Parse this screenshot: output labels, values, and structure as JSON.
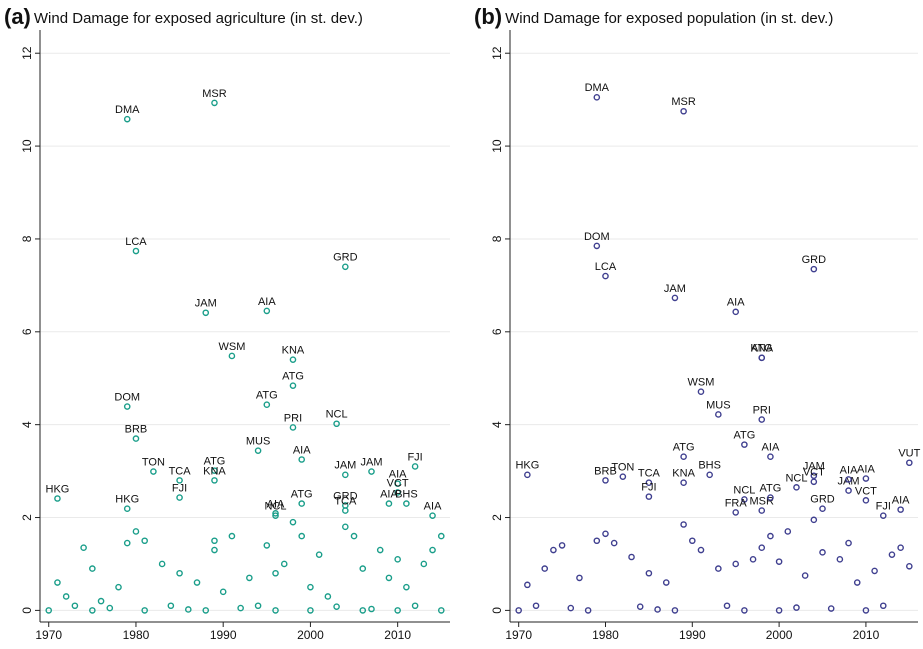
{
  "chart_data": [
    {
      "type": "scatter",
      "panel": "(a)",
      "title": "Wind Damage for exposed agriculture (in st. dev.)",
      "color": "#1a9e8a",
      "xlim": [
        1969,
        2016
      ],
      "ylim": [
        -0.25,
        12.5
      ],
      "xticks": [
        1970,
        1980,
        1990,
        2000,
        2010
      ],
      "yticks": [
        0,
        2,
        4,
        6,
        8,
        10,
        12
      ],
      "grid": true,
      "x": [
        1971,
        1979,
        1989,
        1980,
        1988,
        1995,
        2004,
        1991,
        1998,
        1998,
        1979,
        1995,
        1980,
        1998,
        2003,
        1994,
        1999,
        1982,
        1985,
        1989,
        1989,
        1985,
        2004,
        2007,
        2012,
        2010,
        2010,
        2011,
        1979,
        1996,
        1996,
        1999,
        2004,
        2004,
        2009,
        2014,
        1971,
        1972,
        1974,
        1975,
        1976,
        1978,
        1979,
        1980,
        1981,
        1983,
        1985,
        1987,
        1989,
        1989,
        1990,
        1991,
        1993,
        1995,
        1996,
        1997,
        1998,
        1999,
        2000,
        2001,
        2002,
        2004,
        2005,
        2006,
        2008,
        2009,
        2010,
        2011,
        2013,
        2014,
        2015,
        1973,
        1977,
        1984,
        1986,
        1992,
        1994,
        2003,
        2007,
        2012,
        1970,
        1975,
        1981,
        1988,
        1996,
        2000,
        2006,
        2010,
        2015
      ],
      "y": [
        2.41,
        10.58,
        10.93,
        7.74,
        6.41,
        6.45,
        7.4,
        5.48,
        5.4,
        4.84,
        4.39,
        4.43,
        3.7,
        3.94,
        4.02,
        3.44,
        3.25,
        2.99,
        2.8,
        3.01,
        2.8,
        2.43,
        2.92,
        2.99,
        3.1,
        2.73,
        2.54,
        2.3,
        2.19,
        2.04,
        2.09,
        2.3,
        2.26,
        2.15,
        2.3,
        2.04,
        0.6,
        0.3,
        1.35,
        0.9,
        0.2,
        0.5,
        1.45,
        1.7,
        1.5,
        1.0,
        0.8,
        0.6,
        1.5,
        1.3,
        0.4,
        1.6,
        0.7,
        1.4,
        0.8,
        1.0,
        1.9,
        1.6,
        0.5,
        1.2,
        0.3,
        1.8,
        1.6,
        0.9,
        1.3,
        0.7,
        1.1,
        0.5,
        1.0,
        1.3,
        1.6,
        0.1,
        0.05,
        0.1,
        0.02,
        0.05,
        0.1,
        0.08,
        0.03,
        0.1,
        0.0,
        0.0,
        0.0,
        0.0,
        0.0,
        0.0,
        0.0,
        0.0,
        0.0
      ],
      "labels": [
        "HKG",
        "DMA",
        "MSR",
        "LCA",
        "JAM",
        "AIA",
        "GRD",
        "WSM",
        "KNA",
        "ATG",
        "DOM",
        "ATG",
        "BRB",
        "PRI",
        "NCL",
        "MUS",
        "AIA",
        "TON",
        "TCA",
        "ATG",
        "KNA",
        "FJI",
        "JAM",
        "JAM",
        "FJI",
        "AIA",
        "VCT",
        "BHS",
        "HKG",
        "NCL",
        "AIA",
        "ATG",
        "GRD",
        "TCA",
        "AIA",
        "AIA",
        null,
        null,
        null,
        null,
        null,
        null,
        null,
        null,
        null,
        null,
        null,
        null,
        null,
        null,
        null,
        null,
        null,
        null,
        null,
        null,
        null,
        null,
        null,
        null,
        null,
        null,
        null,
        null,
        null,
        null,
        null,
        null,
        null,
        null,
        null,
        null,
        null,
        null,
        null,
        null,
        null,
        null,
        null,
        null,
        null,
        null,
        null,
        null,
        null,
        null,
        null,
        null,
        null
      ]
    },
    {
      "type": "scatter",
      "panel": "(b)",
      "title": "Wind Damage for exposed population (in st. dev.)",
      "color": "#3f3f8f",
      "xlim": [
        1969,
        2016
      ],
      "ylim": [
        -0.25,
        12.5
      ],
      "xticks": [
        1970,
        1980,
        1990,
        2000,
        2010
      ],
      "yticks": [
        0,
        2,
        4,
        6,
        8,
        10,
        12
      ],
      "grid": true,
      "x": [
        1971,
        1979,
        1989,
        1979,
        1980,
        1988,
        1995,
        2004,
        1998,
        1998,
        1991,
        1993,
        1998,
        1989,
        1996,
        1999,
        1980,
        1982,
        1985,
        1985,
        1989,
        1992,
        1996,
        1995,
        1998,
        1999,
        2002,
        2004,
        2004,
        2005,
        2008,
        2008,
        2010,
        2010,
        2012,
        2014,
        2015,
        1971,
        1973,
        1974,
        1975,
        1977,
        1979,
        1980,
        1981,
        1983,
        1985,
        1987,
        1989,
        1990,
        1991,
        1993,
        1995,
        1997,
        1998,
        1999,
        2000,
        2001,
        2003,
        2004,
        2005,
        2007,
        2008,
        2009,
        2011,
        2013,
        2014,
        2015,
        1972,
        1976,
        1984,
        1986,
        1994,
        2002,
        2006,
        2012,
        1970,
        1978,
        1988,
        1996,
        2000,
        2010
      ],
      "y": [
        2.92,
        11.05,
        10.75,
        7.85,
        7.2,
        6.73,
        6.43,
        7.35,
        5.44,
        5.44,
        4.71,
        4.22,
        4.11,
        3.31,
        3.57,
        3.31,
        2.8,
        2.88,
        2.75,
        2.45,
        2.75,
        2.92,
        2.39,
        2.11,
        2.15,
        2.43,
        2.65,
        2.9,
        2.77,
        2.19,
        2.58,
        2.82,
        2.84,
        2.37,
        2.04,
        2.17,
        3.18,
        0.55,
        0.9,
        1.3,
        1.4,
        0.7,
        1.5,
        1.65,
        1.45,
        1.15,
        0.8,
        0.6,
        1.85,
        1.5,
        1.3,
        0.9,
        1.0,
        1.1,
        1.35,
        1.6,
        1.05,
        1.7,
        0.75,
        1.95,
        1.25,
        1.1,
        1.45,
        0.6,
        0.85,
        1.2,
        1.35,
        0.95,
        0.1,
        0.05,
        0.08,
        0.02,
        0.1,
        0.06,
        0.04,
        0.1,
        0.0,
        0.0,
        0.0,
        0.0,
        0.0,
        0.0
      ],
      "labels": [
        "HKG",
        "DMA",
        "MSR",
        "DOM",
        "LCA",
        "JAM",
        "AIA",
        "GRD",
        "ATG",
        "KNA",
        "WSM",
        "MUS",
        "PRI",
        "ATG",
        "ATG",
        "AIA",
        "BRB",
        "TON",
        "TCA",
        "FJI",
        "KNA",
        "BHS",
        "NCL",
        "FRA",
        "MSR",
        "ATG",
        "NCL",
        "JAM",
        "VCT",
        "GRD",
        "JAM",
        "AIA",
        "AIA",
        "VCT",
        "FJI",
        "AIA",
        "VUT",
        null,
        null,
        null,
        null,
        null,
        null,
        null,
        null,
        null,
        null,
        null,
        null,
        null,
        null,
        null,
        null,
        null,
        null,
        null,
        null,
        null,
        null,
        null,
        null,
        null,
        null,
        null,
        null,
        null,
        null,
        null,
        null,
        null,
        null,
        null,
        null,
        null,
        null,
        null,
        null,
        null,
        null,
        null,
        null,
        null
      ]
    }
  ]
}
